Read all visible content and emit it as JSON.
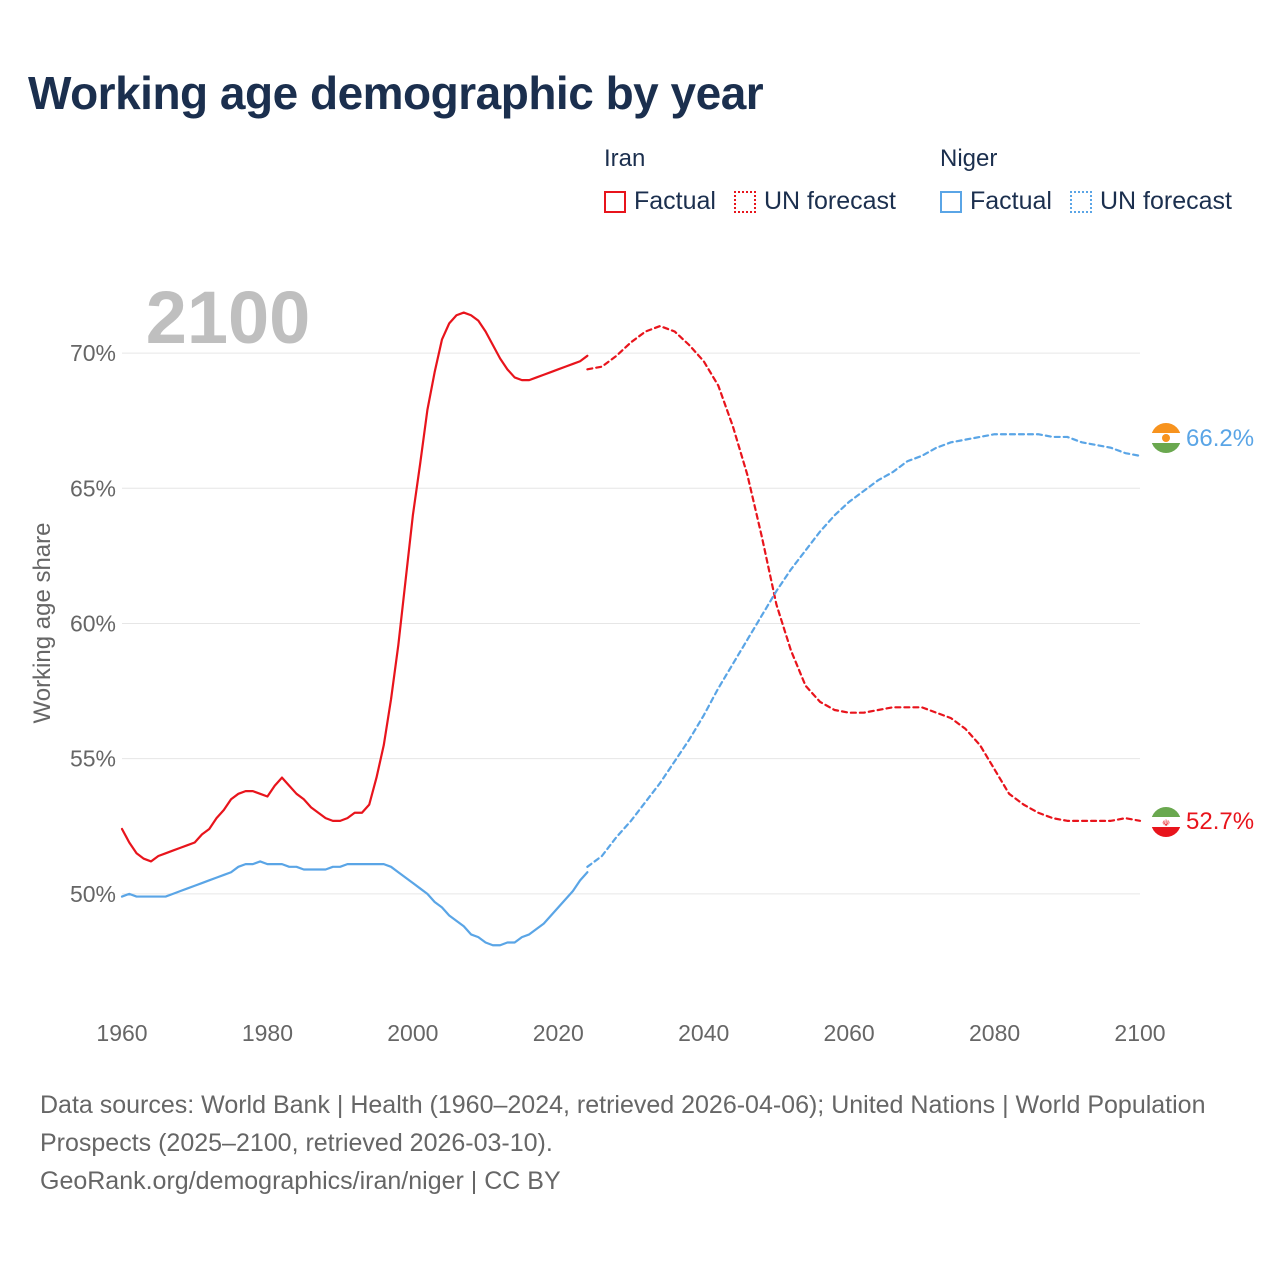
{
  "title": "Working age demographic by year",
  "legend": {
    "iran": {
      "name": "Iran",
      "factual": "Factual",
      "forecast": "UN forecast",
      "color": "#e8141c"
    },
    "niger": {
      "name": "Niger",
      "factual": "Factual",
      "forecast": "UN forecast",
      "color": "#5aa5e6"
    }
  },
  "footer": {
    "line1": "Data sources: World Bank | Health (1960–2024, retrieved 2026-04-06); United Nations | World Population Prospects (2025–2100, retrieved 2026-03-10).",
    "line2": "GeoRank.org/demographics/iran/niger | CC BY"
  },
  "chart_data": {
    "type": "line",
    "title": "Working age demographic by year",
    "year_label": "2100",
    "ylabel": "Working age share",
    "xlim": [
      1960,
      2100
    ],
    "ylim": [
      46.0,
      73.0
    ],
    "x_ticks": [
      1960,
      1980,
      2000,
      2020,
      2040,
      2060,
      2080,
      2100
    ],
    "y_ticks": [
      50,
      55,
      60,
      65,
      70
    ],
    "y_tick_labels": [
      "50%",
      "55%",
      "60%",
      "65%",
      "70%"
    ],
    "series": [
      {
        "name": "Iran",
        "color": "#e8141c",
        "end_label": "52.7%",
        "factual": {
          "x": [
            1960,
            1961,
            1962,
            1963,
            1964,
            1965,
            1966,
            1967,
            1968,
            1969,
            1970,
            1971,
            1972,
            1973,
            1974,
            1975,
            1976,
            1977,
            1978,
            1979,
            1980,
            1981,
            1982,
            1983,
            1984,
            1985,
            1986,
            1987,
            1988,
            1989,
            1990,
            1991,
            1992,
            1993,
            1994,
            1995,
            1996,
            1997,
            1998,
            1999,
            2000,
            2001,
            2002,
            2003,
            2004,
            2005,
            2006,
            2007,
            2008,
            2009,
            2010,
            2011,
            2012,
            2013,
            2014,
            2015,
            2016,
            2017,
            2018,
            2019,
            2020,
            2021,
            2022,
            2023,
            2024
          ],
          "y": [
            52.4,
            51.9,
            51.5,
            51.3,
            51.2,
            51.4,
            51.5,
            51.6,
            51.7,
            51.8,
            51.9,
            52.2,
            52.4,
            52.8,
            53.1,
            53.5,
            53.7,
            53.8,
            53.8,
            53.7,
            53.6,
            54.0,
            54.3,
            54.0,
            53.7,
            53.5,
            53.2,
            53.0,
            52.8,
            52.7,
            52.7,
            52.8,
            53.0,
            53.0,
            53.3,
            54.3,
            55.5,
            57.2,
            59.2,
            61.6,
            64.0,
            65.9,
            67.9,
            69.3,
            70.5,
            71.1,
            71.4,
            71.5,
            71.4,
            71.2,
            70.8,
            70.3,
            69.8,
            69.4,
            69.1,
            69.0,
            69.0,
            69.1,
            69.2,
            69.3,
            69.4,
            69.5,
            69.6,
            69.7,
            69.9
          ]
        },
        "forecast": {
          "x": [
            2024,
            2026,
            2028,
            2030,
            2032,
            2034,
            2036,
            2038,
            2040,
            2042,
            2044,
            2046,
            2048,
            2050,
            2052,
            2054,
            2056,
            2058,
            2060,
            2062,
            2064,
            2066,
            2068,
            2070,
            2072,
            2074,
            2076,
            2078,
            2080,
            2082,
            2084,
            2086,
            2088,
            2090,
            2092,
            2094,
            2096,
            2098,
            2100
          ],
          "y": [
            69.4,
            69.5,
            69.9,
            70.4,
            70.8,
            71.0,
            70.8,
            70.3,
            69.7,
            68.8,
            67.3,
            65.5,
            63.2,
            60.7,
            59.0,
            57.7,
            57.1,
            56.8,
            56.7,
            56.7,
            56.8,
            56.9,
            56.9,
            56.9,
            56.7,
            56.5,
            56.1,
            55.5,
            54.6,
            53.7,
            53.3,
            53.0,
            52.8,
            52.7,
            52.7,
            52.7,
            52.7,
            52.8,
            52.7
          ]
        }
      },
      {
        "name": "Niger",
        "color": "#5aa5e6",
        "end_label": "66.2%",
        "factual": {
          "x": [
            1960,
            1961,
            1962,
            1963,
            1964,
            1965,
            1966,
            1967,
            1968,
            1969,
            1970,
            1971,
            1972,
            1973,
            1974,
            1975,
            1976,
            1977,
            1978,
            1979,
            1980,
            1981,
            1982,
            1983,
            1984,
            1985,
            1986,
            1987,
            1988,
            1989,
            1990,
            1991,
            1992,
            1993,
            1994,
            1995,
            1996,
            1997,
            1998,
            1999,
            2000,
            2001,
            2002,
            2003,
            2004,
            2005,
            2006,
            2007,
            2008,
            2009,
            2010,
            2011,
            2012,
            2013,
            2014,
            2015,
            2016,
            2017,
            2018,
            2019,
            2020,
            2021,
            2022,
            2023,
            2024
          ],
          "y": [
            49.9,
            50.0,
            49.9,
            49.9,
            49.9,
            49.9,
            49.9,
            50.0,
            50.1,
            50.2,
            50.3,
            50.4,
            50.5,
            50.6,
            50.7,
            50.8,
            51.0,
            51.1,
            51.1,
            51.2,
            51.1,
            51.1,
            51.1,
            51.0,
            51.0,
            50.9,
            50.9,
            50.9,
            50.9,
            51.0,
            51.0,
            51.1,
            51.1,
            51.1,
            51.1,
            51.1,
            51.1,
            51.0,
            50.8,
            50.6,
            50.4,
            50.2,
            50.0,
            49.7,
            49.5,
            49.2,
            49.0,
            48.8,
            48.5,
            48.4,
            48.2,
            48.1,
            48.1,
            48.2,
            48.2,
            48.4,
            48.5,
            48.7,
            48.9,
            49.2,
            49.5,
            49.8,
            50.1,
            50.5,
            50.8
          ]
        },
        "forecast": {
          "x": [
            2024,
            2026,
            2028,
            2030,
            2032,
            2034,
            2036,
            2038,
            2040,
            2042,
            2044,
            2046,
            2048,
            2050,
            2052,
            2054,
            2056,
            2058,
            2060,
            2062,
            2064,
            2066,
            2068,
            2070,
            2072,
            2074,
            2076,
            2078,
            2080,
            2082,
            2084,
            2086,
            2088,
            2090,
            2092,
            2094,
            2096,
            2098,
            2100
          ],
          "y": [
            51.0,
            51.4,
            52.1,
            52.7,
            53.4,
            54.1,
            54.9,
            55.7,
            56.6,
            57.6,
            58.5,
            59.4,
            60.3,
            61.2,
            62.0,
            62.7,
            63.4,
            64.0,
            64.5,
            64.9,
            65.3,
            65.6,
            66.0,
            66.2,
            66.5,
            66.7,
            66.8,
            66.9,
            67.0,
            67.0,
            67.0,
            67.0,
            66.9,
            66.9,
            66.7,
            66.6,
            66.5,
            66.3,
            66.2
          ]
        }
      }
    ]
  }
}
